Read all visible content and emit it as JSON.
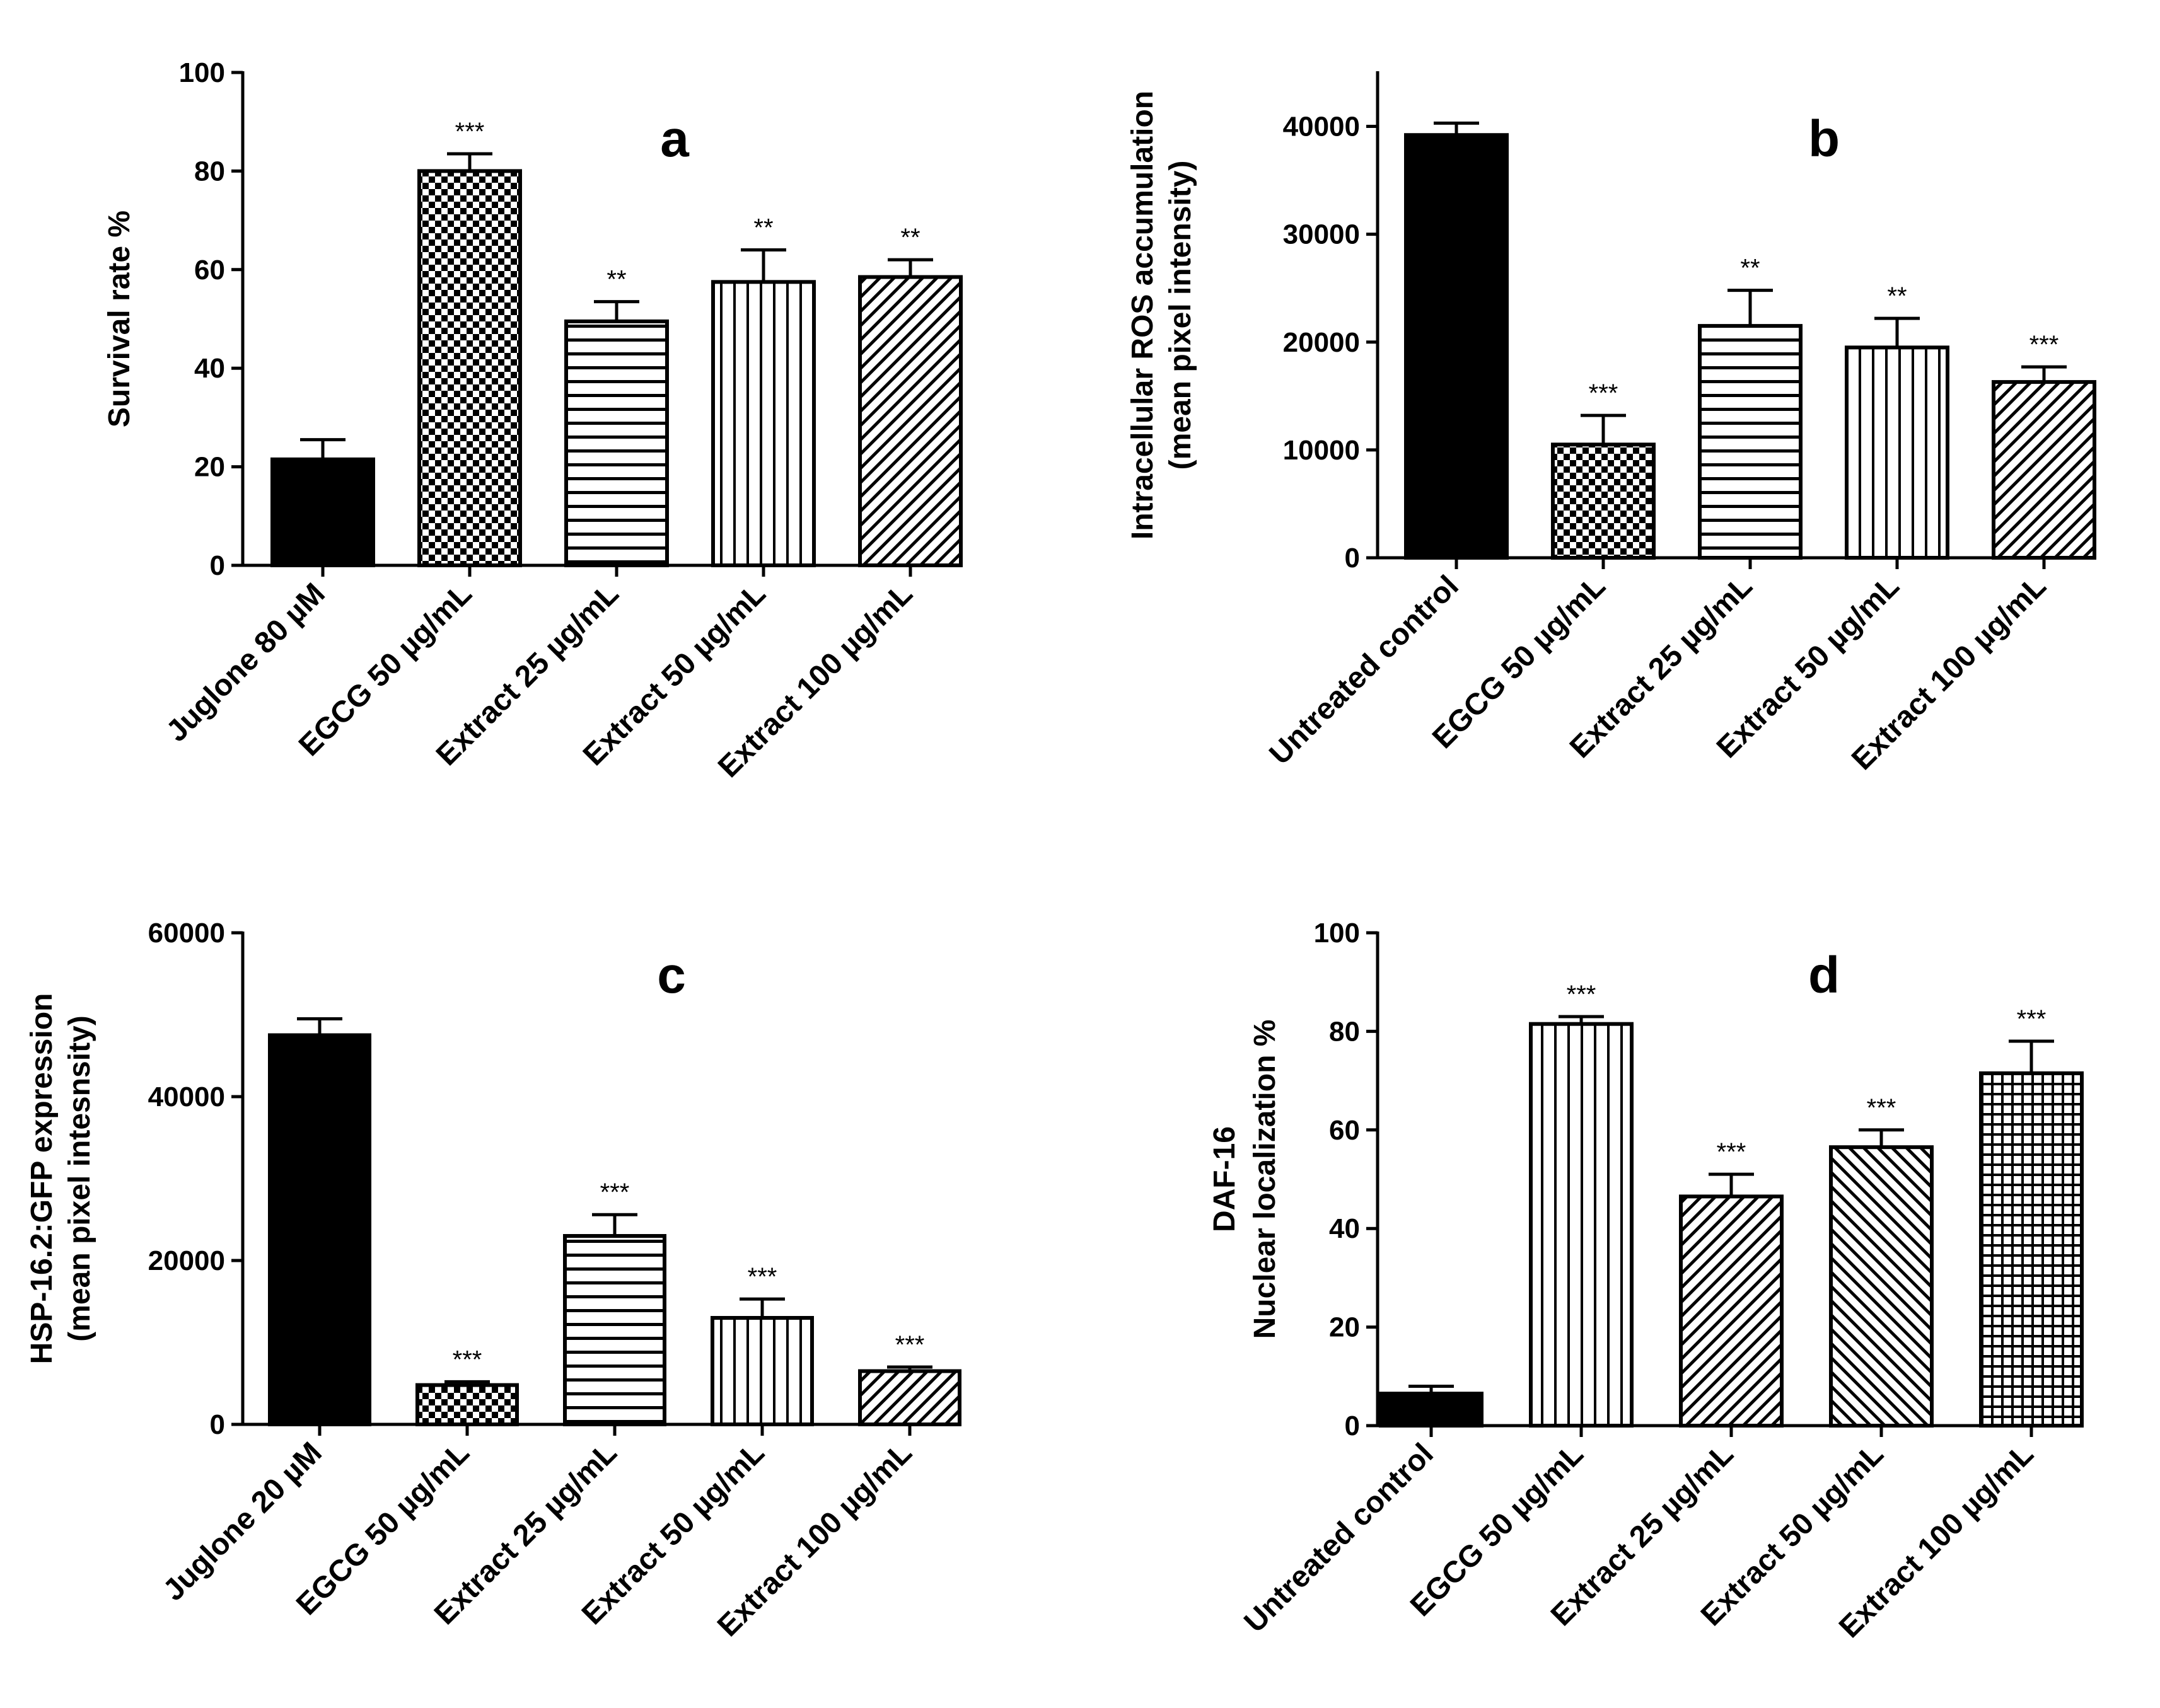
{
  "chart_data": [
    {
      "panel": "a",
      "type": "bar",
      "ylabel": [
        "Survival rate %"
      ],
      "ylim": [
        0,
        100
      ],
      "yticks": [
        0,
        20,
        40,
        60,
        80,
        100
      ],
      "categories": [
        "Juglone 80 µM",
        "EGCG 50 µg/mL",
        "Extract 25 µg/mL",
        "Extract 50 µg/mL",
        "Extract 100 µg/mL"
      ],
      "values": [
        21.5,
        80,
        49.5,
        57.5,
        58.5
      ],
      "errors": [
        4,
        3.5,
        4,
        6.5,
        3.5
      ],
      "significance": [
        "",
        "***",
        "**",
        "**",
        "**"
      ],
      "patterns": [
        "solid",
        "checker",
        "hlines",
        "vlines",
        "diag"
      ]
    },
    {
      "panel": "b",
      "type": "bar",
      "ylabel": [
        "Intracellular ROS accumulation",
        "(mean pixel intensity)"
      ],
      "ylim": [
        0,
        45000
      ],
      "yticks": [
        0,
        10000,
        20000,
        30000,
        40000
      ],
      "categories": [
        "Untreated control",
        "EGCG 50 µg/mL",
        "Extract 25 µg/mL",
        "Extract 50 µg/mL",
        "Extract 100 µg/mL"
      ],
      "values": [
        39200,
        10500,
        21500,
        19500,
        16300
      ],
      "errors": [
        1100,
        2700,
        3300,
        2700,
        1400
      ],
      "significance": [
        "",
        "***",
        "**",
        "**",
        "***"
      ],
      "patterns": [
        "solid",
        "checker",
        "hlines",
        "vlines",
        "diag"
      ]
    },
    {
      "panel": "c",
      "type": "bar",
      "ylabel": [
        "HSP-16.2:GFP expression",
        "(mean pixel intesnsity)"
      ],
      "ylim": [
        0,
        60000
      ],
      "yticks": [
        0,
        20000,
        40000,
        60000
      ],
      "categories": [
        "Juglone 20 µM",
        "EGCG 50 µg/mL",
        "Extract 25 µg/mL",
        "Extract 50 µg/mL",
        "Extract 100 µg/mL"
      ],
      "values": [
        47500,
        4800,
        23000,
        13000,
        6500
      ],
      "errors": [
        2000,
        400,
        2600,
        2300,
        500
      ],
      "significance": [
        "",
        "***",
        "***",
        "***",
        "***"
      ],
      "patterns": [
        "solid",
        "checker",
        "hlines",
        "vlines",
        "diag"
      ]
    },
    {
      "panel": "d",
      "type": "bar",
      "ylabel": [
        "DAF-16",
        "Nuclear localization %"
      ],
      "ylim": [
        0,
        100
      ],
      "yticks": [
        0,
        20,
        40,
        60,
        80,
        100
      ],
      "categories": [
        "Untreated control",
        "EGCG 50 µg/mL",
        "Extract 25 µg/mL",
        "Extract 50 µg/mL",
        "Extract 100 µg/mL"
      ],
      "values": [
        6.5,
        81.5,
        46.5,
        56.5,
        71.5
      ],
      "errors": [
        1.5,
        1.5,
        4.5,
        3.5,
        6.5
      ],
      "significance": [
        "",
        "***",
        "***",
        "***",
        "***"
      ],
      "patterns": [
        "solid",
        "vlines",
        "diag",
        "diagback",
        "grid"
      ]
    }
  ],
  "colors": {
    "ink": "#000000",
    "background": "#ffffff"
  }
}
